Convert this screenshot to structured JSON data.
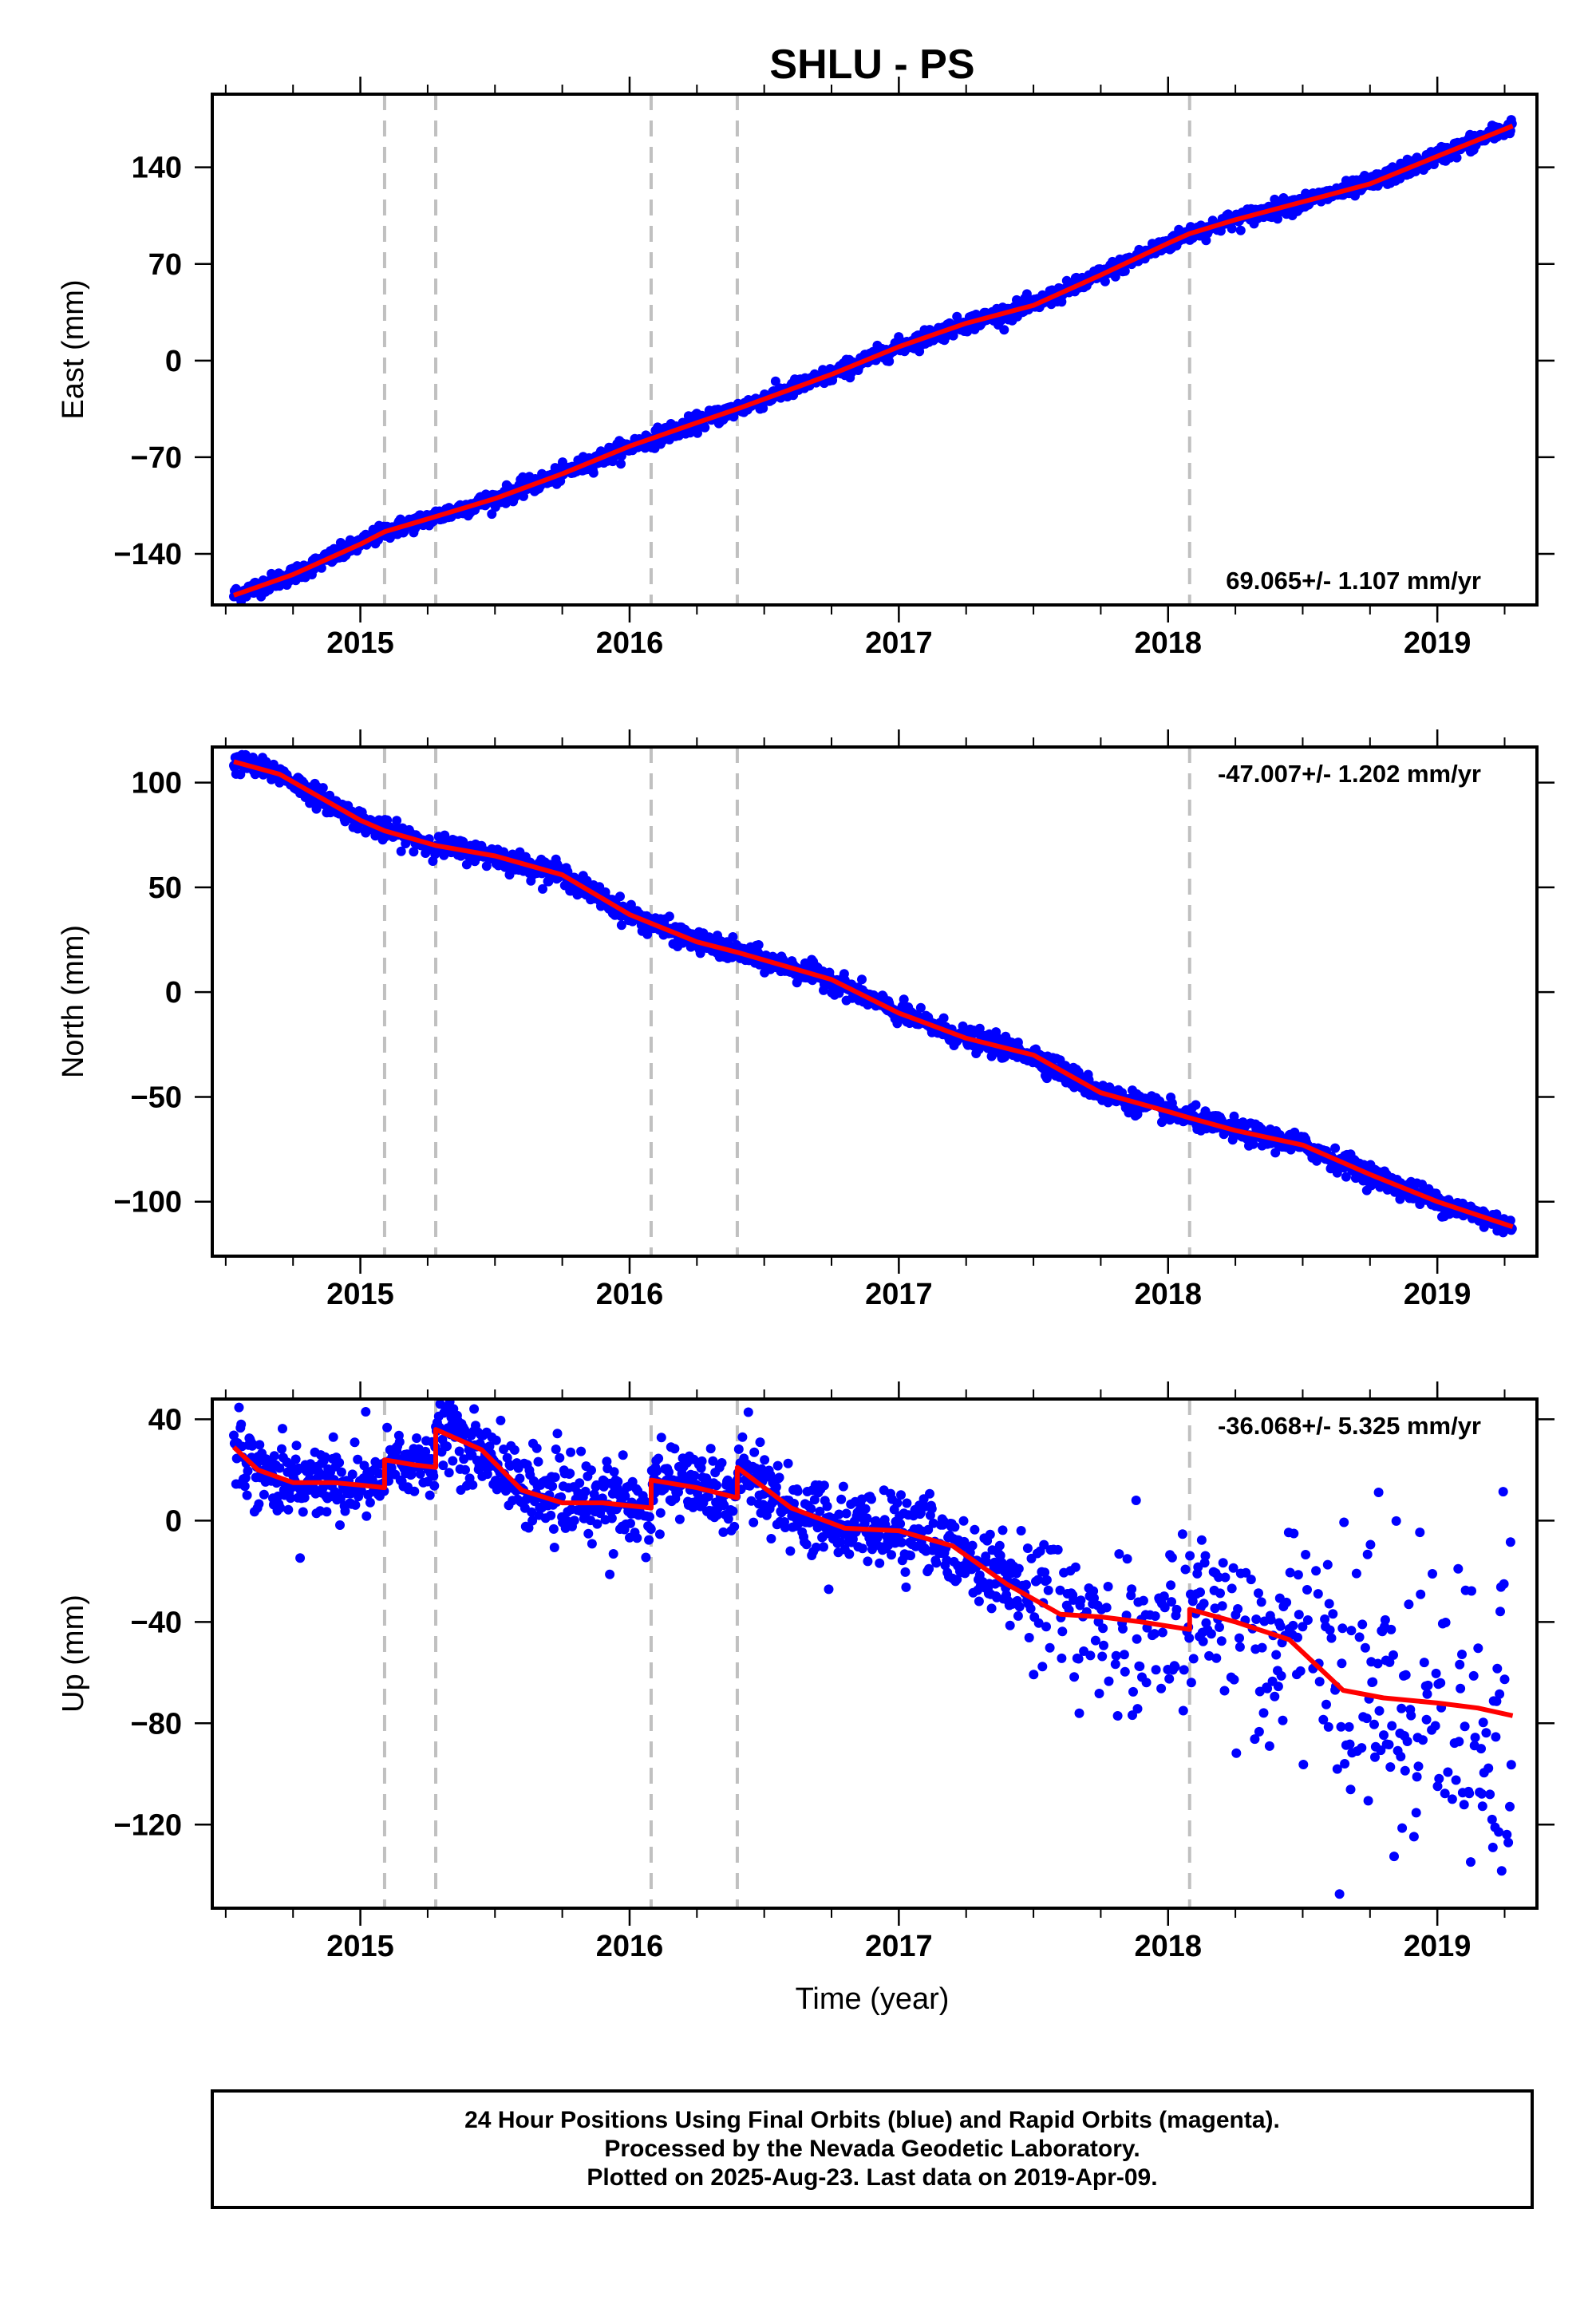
{
  "figure": {
    "title": "SHLU - PS",
    "xlabel": "Time (year)",
    "colors": {
      "data": "#0000ff",
      "model": "#ff0000",
      "event_lines": "#c0c0c0",
      "frame": "#000000"
    }
  },
  "caption": {
    "line1": "24 Hour Positions Using Final Orbits (blue) and Rapid Orbits (magenta).",
    "line2": "Processed by the Nevada Geodetic Laboratory.",
    "line3": "Plotted on 2025-Aug-23. Last data on 2019-Apr-09."
  },
  "chart_data": [
    {
      "type": "scatter",
      "ylabel": "East (mm)",
      "rate_label": "69.065+/- 1.107 mm/yr",
      "xlim": [
        2014.45,
        2019.37
      ],
      "ylim": [
        -177,
        193
      ],
      "x_ticks": [
        2015,
        2016,
        2017,
        2018,
        2019
      ],
      "x_tick_labels": [
        "2015",
        "2016",
        "2017",
        "2018",
        "2019"
      ],
      "y_ticks": [
        -140,
        -70,
        0,
        70,
        140
      ],
      "y_tick_labels": [
        "−140",
        "−70",
        "0",
        "70",
        "140"
      ],
      "event_lines_x": [
        2015.09,
        2015.28,
        2016.08,
        2016.4,
        2018.08
      ],
      "model": {
        "x": [
          2014.53,
          2014.75,
          2015.0,
          2015.09,
          2015.28,
          2015.5,
          2015.75,
          2016.0,
          2016.25,
          2016.4,
          2016.75,
          2017.0,
          2017.25,
          2017.5,
          2017.75,
          2018.0,
          2018.08,
          2018.25,
          2018.5,
          2018.75,
          2019.0,
          2019.28
        ],
        "y": [
          -170,
          -155,
          -133,
          -124,
          -113,
          -100,
          -82,
          -62,
          -45,
          -35,
          -10,
          10,
          27,
          40,
          62,
          85,
          92,
          102,
          115,
          128,
          148,
          170
        ]
      },
      "scatter_sd": 3.0
    },
    {
      "type": "scatter",
      "ylabel": "North (mm)",
      "rate_label": "-47.007+/- 1.202 mm/yr",
      "xlim": [
        2014.45,
        2019.37
      ],
      "ylim": [
        -126,
        117
      ],
      "x_ticks": [
        2015,
        2016,
        2017,
        2018,
        2019
      ],
      "x_tick_labels": [
        "2015",
        "2016",
        "2017",
        "2018",
        "2019"
      ],
      "y_ticks": [
        -100,
        -50,
        0,
        50,
        100
      ],
      "y_tick_labels": [
        "−100",
        "−50",
        "0",
        "50",
        "100"
      ],
      "event_lines_x": [
        2015.09,
        2015.28,
        2016.08,
        2016.4,
        2018.08
      ],
      "model": {
        "x": [
          2014.53,
          2014.7,
          2015.0,
          2015.09,
          2015.28,
          2015.5,
          2015.75,
          2016.0,
          2016.25,
          2016.4,
          2016.75,
          2017.0,
          2017.25,
          2017.5,
          2017.75,
          2018.0,
          2018.08,
          2018.25,
          2018.5,
          2018.75,
          2019.0,
          2019.28
        ],
        "y": [
          110,
          104,
          82,
          77,
          70,
          65,
          56,
          37,
          24,
          19,
          6,
          -10,
          -22,
          -30,
          -48,
          -57,
          -60,
          -66,
          -73,
          -87,
          -100,
          -112
        ]
      },
      "scatter_sd": 2.5
    },
    {
      "type": "scatter",
      "ylabel": "Up (mm)",
      "rate_label": "-36.068+/- 5.325 mm/yr",
      "xlim": [
        2014.45,
        2019.37
      ],
      "ylim": [
        -153,
        48
      ],
      "x_ticks": [
        2015,
        2016,
        2017,
        2018,
        2019
      ],
      "x_tick_labels": [
        "2015",
        "2016",
        "2017",
        "2018",
        "2019"
      ],
      "y_ticks": [
        -120,
        -80,
        -40,
        0,
        40
      ],
      "y_tick_labels": [
        "−120",
        "−80",
        "−40",
        "0",
        "40"
      ],
      "event_lines_x": [
        2015.09,
        2015.28,
        2016.08,
        2016.4,
        2018.08
      ],
      "model": {
        "x": [
          2014.53,
          2014.62,
          2014.75,
          2014.9,
          2015.0,
          2015.09,
          2015.09,
          2015.2,
          2015.28,
          2015.28,
          2015.45,
          2015.6,
          2015.75,
          2015.9,
          2016.08,
          2016.08,
          2016.25,
          2016.4,
          2016.4,
          2016.6,
          2016.8,
          2017.0,
          2017.2,
          2017.4,
          2017.6,
          2017.75,
          2017.9,
          2018.08,
          2018.08,
          2018.25,
          2018.45,
          2018.65,
          2018.8,
          2019.0,
          2019.15,
          2019.28
        ],
        "y": [
          29,
          20,
          15,
          15,
          14,
          13,
          24,
          22,
          21,
          36,
          28,
          12,
          7,
          7,
          5,
          16,
          13,
          9,
          21,
          5,
          -3,
          -4,
          -10,
          -25,
          -37,
          -38,
          -40,
          -43,
          -35,
          -40,
          -47,
          -67,
          -70,
          -72,
          -74,
          -77
        ]
      },
      "scatter_sd": 7.0,
      "outlier_fraction": 0.06
    }
  ]
}
